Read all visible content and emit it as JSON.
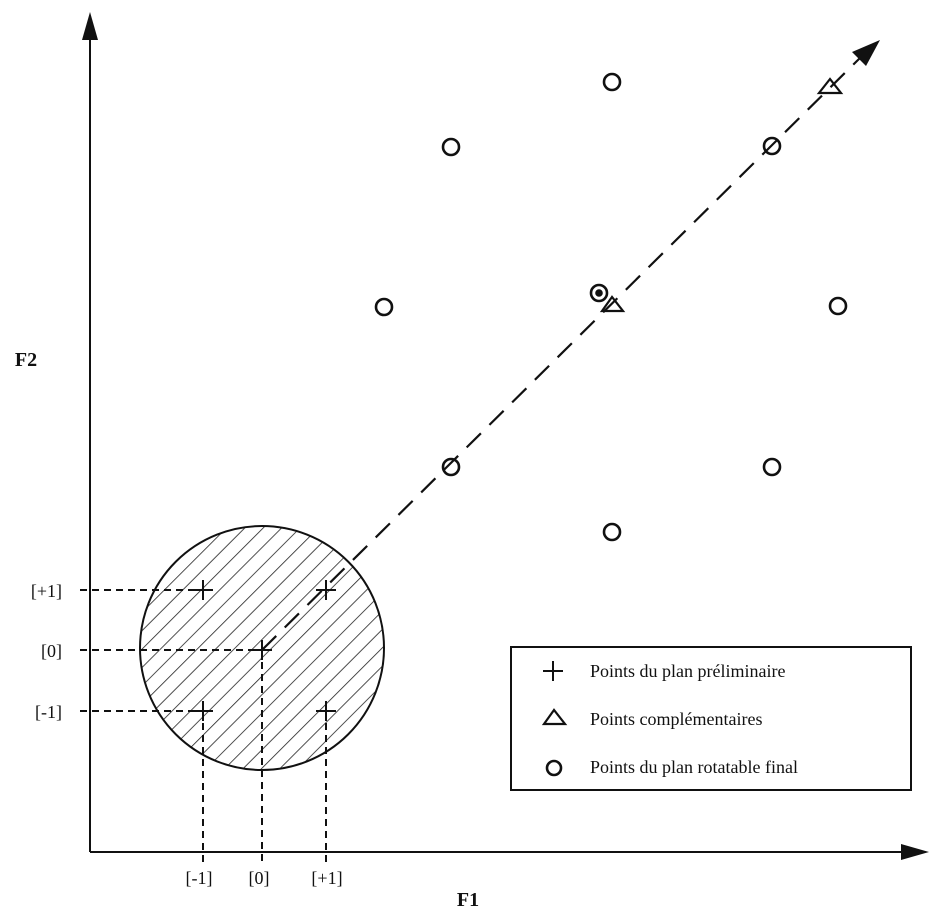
{
  "axes": {
    "x_label": "F1",
    "y_label": "F2"
  },
  "ticks": {
    "x": [
      "[-1]",
      "[0]",
      "[+1]"
    ],
    "y": [
      "[+1]",
      "[0]",
      "[-1]"
    ]
  },
  "legend": {
    "items": [
      {
        "symbol": "plus",
        "label": "Points du plan préliminaire"
      },
      {
        "symbol": "triangle",
        "label": "Points complémentaires"
      },
      {
        "symbol": "circle",
        "label": "Points du plan rotatable final"
      }
    ]
  }
}
